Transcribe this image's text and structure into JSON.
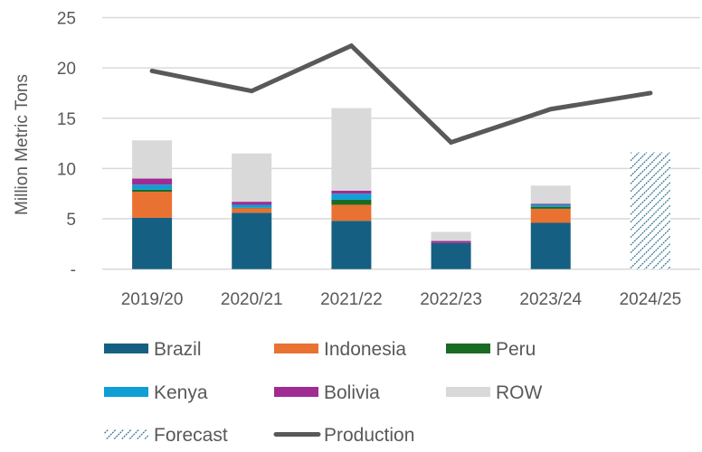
{
  "chart_data": {
    "type": "bar",
    "stacked": true,
    "title": "",
    "xlabel": "",
    "ylabel": "Million Metric Tons",
    "ylim": [
      0,
      25
    ],
    "yticks": [
      0,
      5,
      10,
      15,
      20,
      25
    ],
    "ytick_labels": [
      "-",
      "5",
      "10",
      "15",
      "20",
      "25"
    ],
    "grid": true,
    "legend_position": "bottom",
    "categories": [
      "2019/20",
      "2020/21",
      "2021/22",
      "2022/23",
      "2023/24",
      "2024/25"
    ],
    "series": [
      {
        "name": "Brazil",
        "color": "#156082",
        "values": [
          5.1,
          5.6,
          4.8,
          2.6,
          4.6,
          null
        ]
      },
      {
        "name": "Indonesia",
        "color": "#E97132",
        "values": [
          2.6,
          0.45,
          1.6,
          0.0,
          1.4,
          null
        ]
      },
      {
        "name": "Peru",
        "color": "#196B24",
        "values": [
          0.2,
          0.05,
          0.5,
          0.0,
          0.2,
          null
        ]
      },
      {
        "name": "Kenya",
        "color": "#0F9ED5",
        "values": [
          0.5,
          0.3,
          0.6,
          0.0,
          0.2,
          null
        ]
      },
      {
        "name": "Bolivia",
        "color": "#A02B93",
        "values": [
          0.6,
          0.3,
          0.3,
          0.2,
          0.1,
          null
        ]
      },
      {
        "name": "ROW",
        "color": "#D9D9D9",
        "values": [
          3.8,
          4.8,
          8.2,
          0.9,
          1.8,
          null
        ]
      }
    ],
    "forecast": {
      "name": "Forecast",
      "color": "#156082",
      "values": [
        null,
        null,
        null,
        null,
        null,
        11.6
      ]
    },
    "line": {
      "name": "Production",
      "color": "#595959",
      "values": [
        19.7,
        17.7,
        22.2,
        12.6,
        15.9,
        17.5
      ]
    },
    "legend": [
      "Brazil",
      "Indonesia",
      "Peru",
      "Kenya",
      "Bolivia",
      "ROW",
      "Forecast",
      "Production"
    ]
  }
}
